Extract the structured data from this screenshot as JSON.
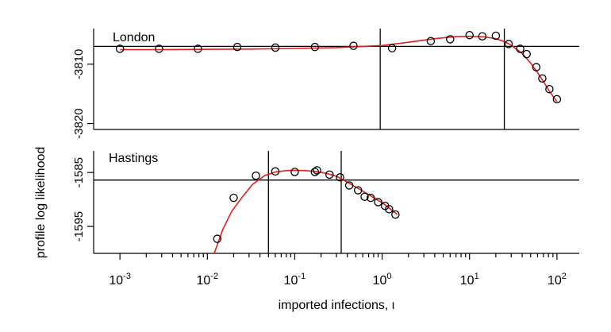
{
  "chart_data": [
    {
      "type": "scatter",
      "panel_label": "London",
      "ylim": [
        -3821,
        -3804
      ],
      "yticks": [
        -3810,
        -3820
      ],
      "ytick_labels": [
        "-3810",
        "-3820"
      ],
      "reference_y": -3807,
      "vlines": [
        0.95,
        25
      ],
      "points": {
        "x": [
          0.001,
          0.0028,
          0.0078,
          0.022,
          0.06,
          0.17,
          0.47,
          1.3,
          3.6,
          6,
          10,
          14,
          20,
          28,
          38,
          45,
          58,
          68,
          82,
          100
        ],
        "y": [
          -3807.4,
          -3807.4,
          -3807.4,
          -3807.1,
          -3807.2,
          -3807.1,
          -3806.9,
          -3807.3,
          -3806.1,
          -3805.8,
          -3805.1,
          -3805.3,
          -3805.2,
          -3806.6,
          -3807.4,
          -3808.3,
          -3810.5,
          -3812.4,
          -3814.2,
          -3815.9
        ]
      },
      "fit_curve": {
        "x": [
          0.001,
          0.003,
          0.01,
          0.03,
          0.1,
          0.3,
          1,
          2,
          4,
          7,
          10,
          15,
          20,
          25,
          30,
          40,
          50,
          60,
          70,
          80,
          90,
          100
        ],
        "y": [
          -3807.55,
          -3807.55,
          -3807.5,
          -3807.45,
          -3807.35,
          -3807.2,
          -3806.85,
          -3806.3,
          -3805.7,
          -3805.35,
          -3805.3,
          -3805.4,
          -3805.7,
          -3806.2,
          -3806.8,
          -3808.2,
          -3809.8,
          -3811.4,
          -3812.9,
          -3814.3,
          -3815.4,
          -3816.3
        ]
      }
    },
    {
      "type": "scatter",
      "panel_label": "Hastings",
      "ylim": [
        -1600,
        -1581
      ],
      "yticks": [
        -1585,
        -1595
      ],
      "ytick_labels": [
        "-1585",
        "-1595"
      ],
      "reference_y": -1586.4,
      "vlines": [
        0.05,
        0.34
      ],
      "points": {
        "x": [
          0.013,
          0.02,
          0.036,
          0.06,
          0.1,
          0.17,
          0.18,
          0.25,
          0.33,
          0.42,
          0.53,
          0.63,
          0.74,
          0.9,
          1.08,
          1.2,
          1.42
        ],
        "y": [
          -1597.3,
          -1589.7,
          -1585.6,
          -1584.8,
          -1584.9,
          -1584.9,
          -1584.6,
          -1585.4,
          -1585.9,
          -1587.4,
          -1588.3,
          -1589.5,
          -1589.7,
          -1590.5,
          -1591.2,
          -1591.8,
          -1592.8
        ]
      },
      "fit_curve": {
        "x": [
          0.012,
          0.015,
          0.019,
          0.025,
          0.033,
          0.045,
          0.06,
          0.08,
          0.1,
          0.13,
          0.17,
          0.22,
          0.3,
          0.4,
          0.55,
          0.75,
          1.0,
          1.5
        ],
        "y": [
          -1600,
          -1595.6,
          -1592.2,
          -1589.6,
          -1587.2,
          -1585.6,
          -1584.9,
          -1584.65,
          -1584.6,
          -1584.65,
          -1584.8,
          -1585.1,
          -1585.7,
          -1586.8,
          -1588.1,
          -1589.4,
          -1590.6,
          -1592.8
        ]
      }
    }
  ],
  "shared_x": {
    "scale": "log",
    "xlim": [
      0.0005,
      180
    ],
    "ticks": [
      0.001,
      0.01,
      0.1,
      1,
      10,
      100
    ],
    "tick_labels": [
      {
        "base": "10",
        "exp": "-3"
      },
      {
        "base": "10",
        "exp": "-2"
      },
      {
        "base": "10",
        "exp": "-1"
      },
      {
        "base": "10",
        "exp": "0"
      },
      {
        "base": "10",
        "exp": "1"
      },
      {
        "base": "10",
        "exp": "2"
      }
    ],
    "xlabel": "imported infections, ι"
  },
  "ylabel": "profile log likelihood",
  "colors": {
    "fit": "#e11d1d",
    "points": "#000000",
    "lines": "#000000"
  }
}
